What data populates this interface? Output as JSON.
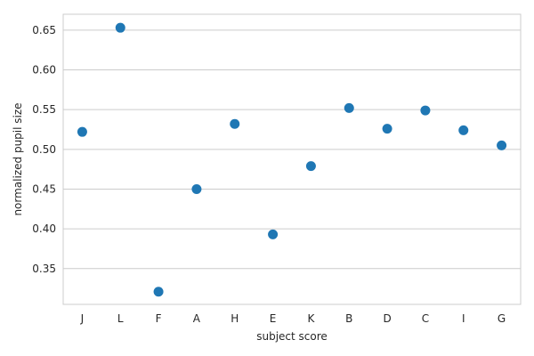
{
  "chart_data": {
    "type": "scatter",
    "categories": [
      "J",
      "L",
      "F",
      "A",
      "H",
      "E",
      "K",
      "B",
      "D",
      "C",
      "I",
      "G"
    ],
    "values": [
      0.522,
      0.653,
      0.321,
      0.45,
      0.532,
      0.393,
      0.479,
      0.552,
      0.526,
      0.549,
      0.524,
      0.505
    ],
    "xlabel": "subject score",
    "ylabel": "normalized pupil size",
    "ylim": [
      0.305,
      0.67
    ],
    "yticks": [
      0.35,
      0.4,
      0.45,
      0.5,
      0.55,
      0.6,
      0.65
    ],
    "ytick_labels": [
      "0.35",
      "0.40",
      "0.45",
      "0.50",
      "0.55",
      "0.60",
      "0.65"
    ],
    "grid": "horizontal",
    "legend": "none",
    "marker_color": "#1f77b4",
    "grid_color": "#cccccc",
    "frame_color": "#cccccc"
  }
}
